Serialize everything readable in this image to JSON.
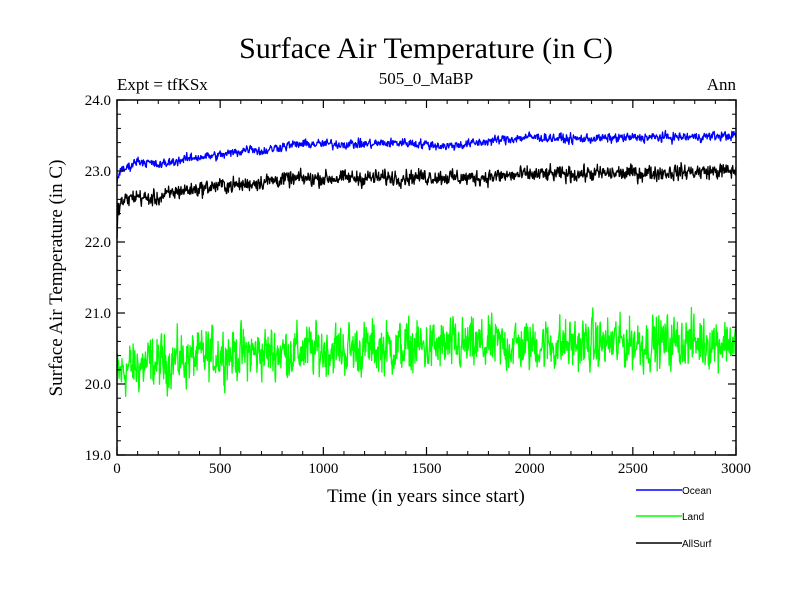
{
  "chart_data": {
    "type": "line",
    "title": "Surface Air Temperature (in C)",
    "subtitle": "505_0_MaBP",
    "left_annotation": "Expt = tfKSx",
    "right_annotation": "Ann",
    "xlabel": "Time (in years since start)",
    "ylabel": "Surface Air Temperature (in C)",
    "xlim": [
      0,
      3000
    ],
    "ylim": [
      19.0,
      24.0
    ],
    "xticks": [
      0,
      500,
      1000,
      1500,
      2000,
      2500,
      3000
    ],
    "yticks": [
      19.0,
      20.0,
      21.0,
      22.0,
      23.0,
      24.0
    ],
    "ytick_labels": [
      "19.0",
      "20.0",
      "21.0",
      "22.0",
      "23.0",
      "24.0"
    ],
    "grid": false,
    "legend_position": "bottom-right",
    "series": [
      {
        "name": "Ocean",
        "color": "#0000ff",
        "noise": 0.03,
        "x": [
          0,
          5,
          20,
          50,
          100,
          150,
          200,
          300,
          400,
          500,
          600,
          650,
          700,
          800,
          900,
          1000,
          1200,
          1400,
          1600,
          1700,
          1800,
          2000,
          2200,
          2500,
          2800,
          3000
        ],
        "values": [
          22.85,
          22.95,
          23.0,
          23.05,
          23.15,
          23.12,
          23.08,
          23.15,
          23.2,
          23.22,
          23.28,
          23.33,
          23.27,
          23.35,
          23.38,
          23.38,
          23.38,
          23.4,
          23.35,
          23.38,
          23.42,
          23.48,
          23.45,
          23.47,
          23.48,
          23.5
        ]
      },
      {
        "name": "Land",
        "color": "#00ff00",
        "noise": 0.17,
        "x": [
          0,
          50,
          200,
          500,
          800,
          1000,
          1500,
          2000,
          2500,
          3000
        ],
        "values": [
          20.12,
          20.22,
          20.3,
          20.42,
          20.45,
          20.48,
          20.52,
          20.55,
          20.58,
          20.6
        ]
      },
      {
        "name": "AllSurf",
        "color": "#000000",
        "noise": 0.05,
        "x": [
          0,
          5,
          20,
          50,
          100,
          150,
          200,
          300,
          400,
          500,
          600,
          700,
          800,
          1000,
          1200,
          1500,
          1700,
          2000,
          2500,
          3000
        ],
        "values": [
          22.1,
          22.45,
          22.55,
          22.6,
          22.65,
          22.6,
          22.62,
          22.72,
          22.75,
          22.8,
          22.8,
          22.85,
          22.88,
          22.9,
          22.9,
          22.92,
          22.9,
          22.95,
          22.97,
          23.0
        ]
      }
    ]
  }
}
